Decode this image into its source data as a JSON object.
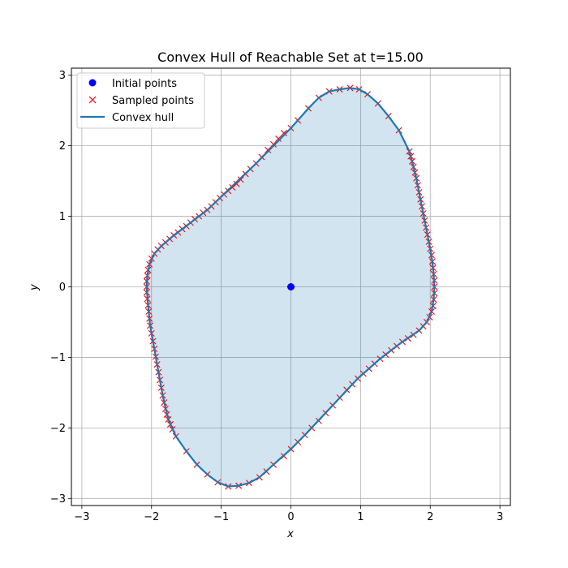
{
  "chart_data": {
    "type": "scatter",
    "title": "Convex Hull of Reachable Set at t=15.00",
    "xlabel": "x",
    "ylabel": "y",
    "xlim": [
      -3.15,
      3.15
    ],
    "ylim": [
      -3.1,
      3.1
    ],
    "xticks": [
      -3,
      -2,
      -1,
      0,
      1,
      2,
      3
    ],
    "yticks": [
      -3,
      -2,
      -1,
      0,
      1,
      2,
      3
    ],
    "xtick_labels": [
      "−3",
      "−2",
      "−1",
      "0",
      "1",
      "2",
      "3"
    ],
    "ytick_labels": [
      "−3",
      "−2",
      "−1",
      "0",
      "1",
      "2",
      "3"
    ],
    "grid": true,
    "legend_position": "top-left",
    "colors": {
      "initial": "#0000ff",
      "sampled": "#ff0000",
      "hull": "#1f77b4",
      "fill": "#1f77b4"
    },
    "series": [
      {
        "name": "Initial points",
        "marker": "circle",
        "points": [
          [
            0,
            0
          ]
        ]
      },
      {
        "name": "Sampled points",
        "marker": "x",
        "points": [
          [
            0.85,
            2.82
          ],
          [
            0.7,
            2.8
          ],
          [
            0.55,
            2.77
          ],
          [
            0.4,
            2.68
          ],
          [
            0.25,
            2.53
          ],
          [
            0.1,
            2.36
          ],
          [
            0.0,
            2.25
          ],
          [
            -0.1,
            2.18
          ],
          [
            -0.18,
            2.1
          ],
          [
            -0.25,
            2.02
          ],
          [
            -0.33,
            1.94
          ],
          [
            -0.42,
            1.84
          ],
          [
            -0.5,
            1.75
          ],
          [
            -0.58,
            1.67
          ],
          [
            -0.65,
            1.6
          ],
          [
            -0.72,
            1.52
          ],
          [
            -0.78,
            1.46
          ],
          [
            -0.84,
            1.41
          ],
          [
            -0.9,
            1.36
          ],
          [
            -0.96,
            1.31
          ],
          [
            -1.02,
            1.26
          ],
          [
            -1.08,
            1.2
          ],
          [
            -1.14,
            1.14
          ],
          [
            -1.2,
            1.09
          ],
          [
            -1.26,
            1.05
          ],
          [
            -1.32,
            1.0
          ],
          [
            -1.38,
            0.96
          ],
          [
            -1.44,
            0.91
          ],
          [
            -1.5,
            0.86
          ],
          [
            -1.56,
            0.82
          ],
          [
            -1.62,
            0.77
          ],
          [
            -1.68,
            0.73
          ],
          [
            -1.74,
            0.68
          ],
          [
            -1.8,
            0.63
          ],
          [
            -1.86,
            0.58
          ],
          [
            -1.91,
            0.53
          ],
          [
            -1.96,
            0.47
          ],
          [
            -2.0,
            0.4
          ],
          [
            -2.03,
            0.32
          ],
          [
            -2.05,
            0.24
          ],
          [
            -2.06,
            0.16
          ],
          [
            -2.07,
            0.08
          ],
          [
            -2.07,
            0.0
          ],
          [
            -2.07,
            -0.08
          ],
          [
            -2.06,
            -0.17
          ],
          [
            -2.05,
            -0.26
          ],
          [
            -2.04,
            -0.35
          ],
          [
            -2.03,
            -0.45
          ],
          [
            -2.02,
            -0.55
          ],
          [
            -2.0,
            -0.66
          ],
          [
            -1.98,
            -0.77
          ],
          [
            -1.96,
            -0.88
          ],
          [
            -1.94,
            -0.99
          ],
          [
            -1.92,
            -1.1
          ],
          [
            -1.9,
            -1.21
          ],
          [
            -1.88,
            -1.32
          ],
          [
            -1.86,
            -1.43
          ],
          [
            -1.84,
            -1.54
          ],
          [
            -1.82,
            -1.64
          ],
          [
            -1.8,
            -1.73
          ],
          [
            -1.78,
            -1.81
          ],
          [
            -1.76,
            -1.88
          ],
          [
            -1.73,
            -1.95
          ],
          [
            -1.7,
            -2.02
          ],
          [
            -1.65,
            -2.12
          ],
          [
            -1.5,
            -2.33
          ],
          [
            -1.35,
            -2.52
          ],
          [
            -1.2,
            -2.66
          ],
          [
            -1.05,
            -2.77
          ],
          [
            -0.9,
            -2.83
          ],
          [
            -0.75,
            -2.82
          ],
          [
            -0.6,
            -2.78
          ],
          [
            -0.45,
            -2.7
          ],
          [
            -0.35,
            -2.62
          ],
          [
            -0.25,
            -2.52
          ],
          [
            -0.1,
            -2.4
          ],
          [
            0.0,
            -2.3
          ],
          [
            0.1,
            -2.2
          ],
          [
            0.2,
            -2.1
          ],
          [
            0.3,
            -2.0
          ],
          [
            0.4,
            -1.9
          ],
          [
            0.5,
            -1.79
          ],
          [
            0.6,
            -1.68
          ],
          [
            0.7,
            -1.57
          ],
          [
            0.8,
            -1.46
          ],
          [
            0.88,
            -1.38
          ],
          [
            0.96,
            -1.3
          ],
          [
            1.04,
            -1.23
          ],
          [
            1.12,
            -1.16
          ],
          [
            1.2,
            -1.09
          ],
          [
            1.28,
            -1.02
          ],
          [
            1.36,
            -0.96
          ],
          [
            1.44,
            -0.9
          ],
          [
            1.52,
            -0.84
          ],
          [
            1.6,
            -0.78
          ],
          [
            1.68,
            -0.73
          ],
          [
            1.76,
            -0.68
          ],
          [
            1.84,
            -0.62
          ],
          [
            1.9,
            -0.56
          ],
          [
            1.95,
            -0.5
          ],
          [
            1.99,
            -0.43
          ],
          [
            2.02,
            -0.35
          ],
          [
            2.04,
            -0.27
          ],
          [
            2.05,
            -0.18
          ],
          [
            2.06,
            -0.09
          ],
          [
            2.06,
            0.0
          ],
          [
            2.06,
            0.09
          ],
          [
            2.05,
            0.18
          ],
          [
            2.04,
            0.27
          ],
          [
            2.03,
            0.36
          ],
          [
            2.02,
            0.45
          ],
          [
            2.0,
            0.54
          ],
          [
            1.98,
            0.64
          ],
          [
            1.96,
            0.74
          ],
          [
            1.94,
            0.84
          ],
          [
            1.92,
            0.94
          ],
          [
            1.9,
            1.04
          ],
          [
            1.88,
            1.14
          ],
          [
            1.86,
            1.24
          ],
          [
            1.84,
            1.34
          ],
          [
            1.82,
            1.44
          ],
          [
            1.8,
            1.54
          ],
          [
            1.78,
            1.62
          ],
          [
            1.76,
            1.7
          ],
          [
            1.74,
            1.78
          ],
          [
            1.72,
            1.85
          ],
          [
            1.7,
            1.92
          ],
          [
            1.55,
            2.22
          ],
          [
            1.4,
            2.42
          ],
          [
            1.25,
            2.6
          ],
          [
            1.1,
            2.73
          ],
          [
            0.98,
            2.8
          ]
        ]
      },
      {
        "name": "Convex hull",
        "line": true,
        "points": [
          [
            0.85,
            2.82
          ],
          [
            0.98,
            2.8
          ],
          [
            1.1,
            2.73
          ],
          [
            1.25,
            2.6
          ],
          [
            1.4,
            2.42
          ],
          [
            1.55,
            2.22
          ],
          [
            1.7,
            1.92
          ],
          [
            1.76,
            1.7
          ],
          [
            1.8,
            1.54
          ],
          [
            1.84,
            1.34
          ],
          [
            1.88,
            1.14
          ],
          [
            1.92,
            0.94
          ],
          [
            1.96,
            0.74
          ],
          [
            2.0,
            0.54
          ],
          [
            2.03,
            0.36
          ],
          [
            2.05,
            0.18
          ],
          [
            2.06,
            0.0
          ],
          [
            2.05,
            -0.18
          ],
          [
            2.02,
            -0.35
          ],
          [
            1.95,
            -0.5
          ],
          [
            1.84,
            -0.62
          ],
          [
            1.6,
            -0.78
          ],
          [
            1.28,
            -1.02
          ],
          [
            0.96,
            -1.3
          ],
          [
            0.6,
            -1.68
          ],
          [
            0.2,
            -2.1
          ],
          [
            0.0,
            -2.3
          ],
          [
            -0.25,
            -2.52
          ],
          [
            -0.45,
            -2.7
          ],
          [
            -0.6,
            -2.78
          ],
          [
            -0.75,
            -2.82
          ],
          [
            -0.9,
            -2.83
          ],
          [
            -1.05,
            -2.77
          ],
          [
            -1.2,
            -2.66
          ],
          [
            -1.35,
            -2.52
          ],
          [
            -1.5,
            -2.33
          ],
          [
            -1.65,
            -2.12
          ],
          [
            -1.76,
            -1.88
          ],
          [
            -1.84,
            -1.54
          ],
          [
            -1.9,
            -1.21
          ],
          [
            -1.96,
            -0.88
          ],
          [
            -2.02,
            -0.55
          ],
          [
            -2.05,
            -0.26
          ],
          [
            -2.07,
            0.0
          ],
          [
            -2.06,
            0.16
          ],
          [
            -2.03,
            0.32
          ],
          [
            -1.96,
            0.47
          ],
          [
            -1.86,
            0.58
          ],
          [
            -1.68,
            0.73
          ],
          [
            -1.2,
            1.09
          ],
          [
            -0.5,
            1.75
          ],
          [
            0.0,
            2.25
          ],
          [
            0.25,
            2.53
          ],
          [
            0.4,
            2.68
          ],
          [
            0.55,
            2.77
          ],
          [
            0.7,
            2.8
          ],
          [
            0.85,
            2.82
          ]
        ]
      }
    ]
  }
}
